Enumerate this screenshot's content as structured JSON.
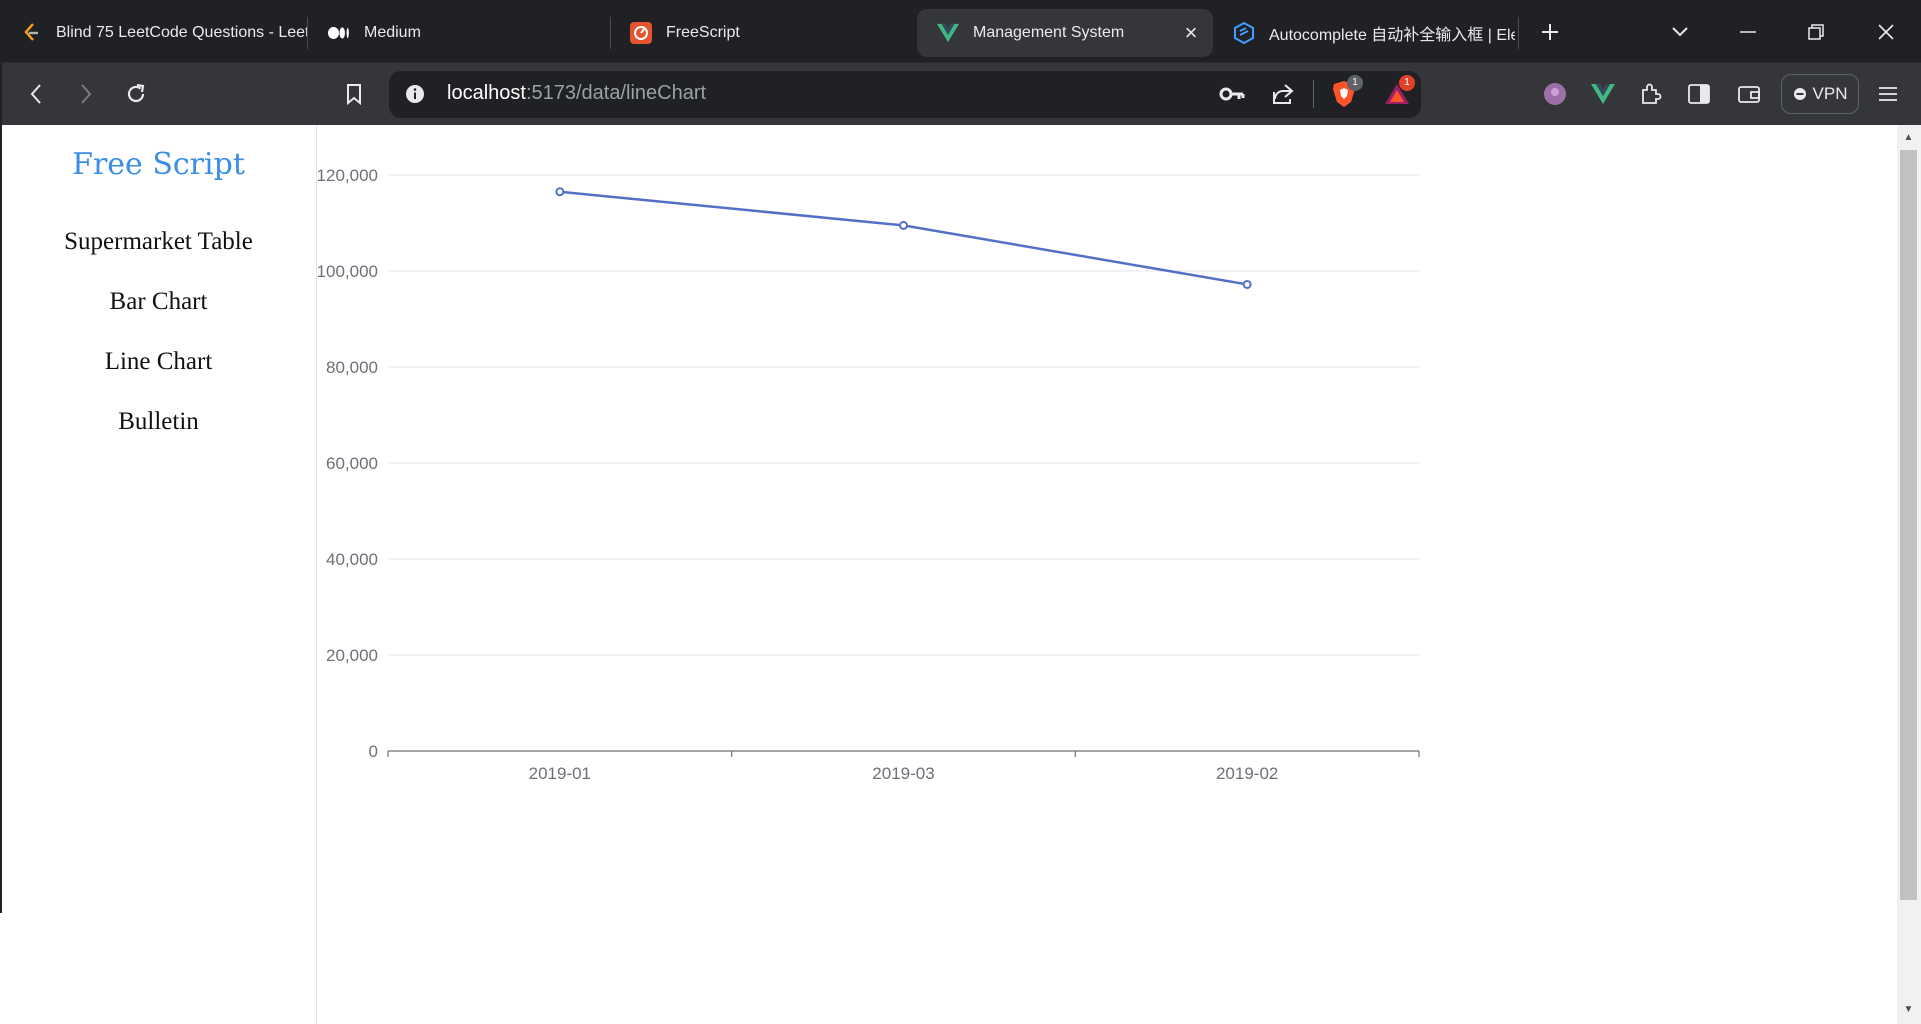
{
  "browser": {
    "tabs": [
      {
        "title": "Blind 75 LeetCode Questions - Leet",
        "icon": "leetcode-icon",
        "active": false
      },
      {
        "title": "Medium",
        "icon": "medium-icon",
        "active": false
      },
      {
        "title": "FreeScript",
        "icon": "freescript-icon",
        "active": false
      },
      {
        "title": "Management System",
        "icon": "vue-icon",
        "active": true
      },
      {
        "title": "Autocomplete 自动补全输入框 | Ele",
        "icon": "element-icon",
        "active": false
      }
    ],
    "url_host": "localhost",
    "url_path": ":5173/data/lineChart",
    "vpn_label": "VPN",
    "brave_badge": "1",
    "rewards_badge": "1"
  },
  "sidebar": {
    "brand": "Free Script",
    "items": [
      {
        "label": "Supermarket Table"
      },
      {
        "label": "Bar Chart"
      },
      {
        "label": "Line Chart"
      },
      {
        "label": "Bulletin"
      }
    ]
  },
  "colors": {
    "accent": "#3a8ee6",
    "series": "#5470c6",
    "axis_text": "#6e7079",
    "grid": "#e0e6f1"
  },
  "chart_data": {
    "type": "line",
    "categories": [
      "2019-01",
      "2019-03",
      "2019-02"
    ],
    "series": [
      {
        "values": [
          116500,
          109500,
          97200
        ]
      }
    ],
    "ylim": [
      0,
      120000
    ],
    "yticks": [
      0,
      20000,
      40000,
      60000,
      80000,
      100000,
      120000
    ],
    "ytick_labels": [
      "0",
      "20,000",
      "40,000",
      "60,000",
      "80,000",
      "100,000",
      "120,000"
    ],
    "grid": true,
    "title": "",
    "xlabel": "",
    "ylabel": ""
  }
}
